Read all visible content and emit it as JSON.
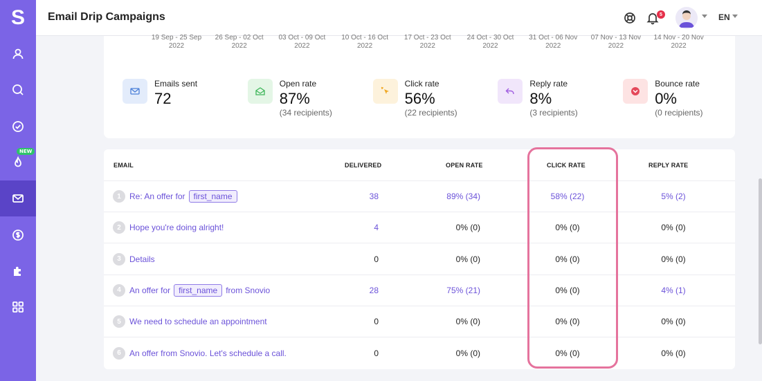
{
  "app": {
    "logo_letter": "S",
    "title": "Email Drip Campaigns",
    "accent": "#7b64e6",
    "nav_items": [
      {
        "name": "user",
        "icon": "user-icon",
        "active": false
      },
      {
        "name": "search",
        "icon": "search-icon",
        "active": false
      },
      {
        "name": "tasks",
        "icon": "check-circle-icon",
        "active": false
      },
      {
        "name": "campaigns",
        "icon": "flame-icon",
        "active": false,
        "badge": "NEW"
      },
      {
        "name": "email",
        "icon": "mail-icon",
        "active": true
      },
      {
        "name": "billing",
        "icon": "dollar-icon",
        "active": false
      },
      {
        "name": "integrations",
        "icon": "puzzle-icon",
        "active": false
      },
      {
        "name": "apps",
        "icon": "grid-icon",
        "active": false
      }
    ]
  },
  "header": {
    "notification_count": "5",
    "language": "EN"
  },
  "weeks": [
    {
      "range": "19 Sep - 25 Sep",
      "year": "2022"
    },
    {
      "range": "26 Sep - 02 Oct",
      "year": "2022"
    },
    {
      "range": "03 Oct - 09 Oct",
      "year": "2022"
    },
    {
      "range": "10 Oct - 16 Oct",
      "year": "2022"
    },
    {
      "range": "17 Oct - 23 Oct",
      "year": "2022"
    },
    {
      "range": "24 Oct - 30 Oct",
      "year": "2022"
    },
    {
      "range": "31 Oct - 06 Nov",
      "year": "2022"
    },
    {
      "range": "07 Nov - 13 Nov",
      "year": "2022"
    },
    {
      "range": "14 Nov - 20 Nov",
      "year": "2022"
    }
  ],
  "stats": [
    {
      "label": "Emails sent",
      "value": "72",
      "sub": "",
      "icon": "mail-icon",
      "bg": "#e3ecfb",
      "color": "#4a7fd8"
    },
    {
      "label": "Open rate",
      "value": "87%",
      "sub": "(34 recipients)",
      "icon": "open-mail-icon",
      "bg": "#e4f6e6",
      "color": "#3fb65a"
    },
    {
      "label": "Click rate",
      "value": "56%",
      "sub": "(22 recipients)",
      "icon": "cursor-click-icon",
      "bg": "#fdf2dc",
      "color": "#f0a825"
    },
    {
      "label": "Reply rate",
      "value": "8%",
      "sub": "(3 recipients)",
      "icon": "reply-icon",
      "bg": "#f1e6fb",
      "color": "#a05ce0"
    },
    {
      "label": "Bounce rate",
      "value": "0%",
      "sub": "(0 recipients)",
      "icon": "bounce-icon",
      "bg": "#fde3e3",
      "color": "#e4485a"
    }
  ],
  "table": {
    "headers": {
      "email": "EMAIL",
      "delivered": "DELIVERED",
      "open_rate": "OPEN RATE",
      "click_rate": "CLICK RATE",
      "reply_rate": "REPLY RATE"
    },
    "rows": [
      {
        "num": "1",
        "parts": [
          "Re: An offer for",
          "first_name",
          ""
        ],
        "delivered": "38",
        "open": "89% (34)",
        "click": "58% (22)",
        "reply": "5% (2)",
        "linked": true
      },
      {
        "num": "2",
        "parts": [
          "Hope you're doing alright!"
        ],
        "delivered": "4",
        "open": "0% (0)",
        "click": "0% (0)",
        "reply": "0% (0)",
        "linked": false,
        "delivered_link": true
      },
      {
        "num": "3",
        "parts": [
          "Details"
        ],
        "delivered": "0",
        "open": "0% (0)",
        "click": "0% (0)",
        "reply": "0% (0)",
        "linked": false
      },
      {
        "num": "4",
        "parts": [
          "An offer for",
          "first_name",
          "from Snovio"
        ],
        "delivered": "28",
        "open": "75% (21)",
        "click": "0% (0)",
        "reply": "4% (1)",
        "linked": true
      },
      {
        "num": "5",
        "parts": [
          "We need to schedule an appointment"
        ],
        "delivered": "0",
        "open": "0% (0)",
        "click": "0% (0)",
        "reply": "0% (0)",
        "linked": false
      },
      {
        "num": "6",
        "parts": [
          "An offer from Snovio. Let's schedule a call."
        ],
        "delivered": "0",
        "open": "0% (0)",
        "click": "0% (0)",
        "reply": "0% (0)",
        "linked": false
      }
    ]
  }
}
